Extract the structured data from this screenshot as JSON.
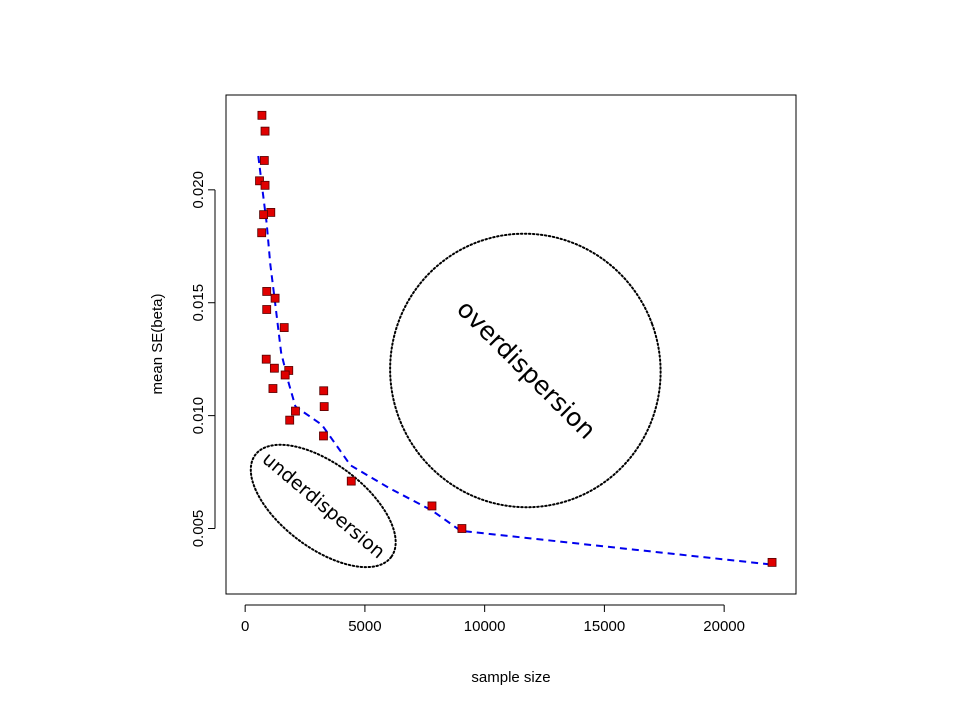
{
  "chart_data": {
    "type": "scatter",
    "xlabel": "sample size",
    "ylabel": "mean SE(beta)",
    "xlim": [
      -800,
      23000
    ],
    "ylim": [
      0.0021,
      0.0242
    ],
    "x_ticks": [
      0,
      5000,
      10000,
      15000,
      20000
    ],
    "y_ticks": [
      0.005,
      0.01,
      0.015,
      0.02
    ],
    "x_tick_labels": [
      "0",
      "5000",
      "10000",
      "15000",
      "20000"
    ],
    "y_tick_labels": [
      "0.005",
      "0.010",
      "0.015",
      "0.020"
    ],
    "grid": false,
    "colors": {
      "points": "#e00000",
      "point_border": "#550000",
      "trend": "#0000ee"
    },
    "points": [
      {
        "x": 700,
        "y": 0.0233
      },
      {
        "x": 830,
        "y": 0.0226
      },
      {
        "x": 800,
        "y": 0.0213
      },
      {
        "x": 600,
        "y": 0.0204
      },
      {
        "x": 830,
        "y": 0.0202
      },
      {
        "x": 1070,
        "y": 0.019
      },
      {
        "x": 770,
        "y": 0.0189
      },
      {
        "x": 690,
        "y": 0.0181
      },
      {
        "x": 900,
        "y": 0.0155
      },
      {
        "x": 1250,
        "y": 0.0152
      },
      {
        "x": 900,
        "y": 0.0147
      },
      {
        "x": 1630,
        "y": 0.0139
      },
      {
        "x": 880,
        "y": 0.0125
      },
      {
        "x": 1220,
        "y": 0.0121
      },
      {
        "x": 1820,
        "y": 0.012
      },
      {
        "x": 1670,
        "y": 0.0118
      },
      {
        "x": 1160,
        "y": 0.0112
      },
      {
        "x": 3280,
        "y": 0.0111
      },
      {
        "x": 3300,
        "y": 0.0104
      },
      {
        "x": 2100,
        "y": 0.0102
      },
      {
        "x": 1860,
        "y": 0.0098
      },
      {
        "x": 3270,
        "y": 0.0091
      },
      {
        "x": 4430,
        "y": 0.0071
      },
      {
        "x": 7800,
        "y": 0.006
      },
      {
        "x": 9050,
        "y": 0.005
      },
      {
        "x": 22000,
        "y": 0.0035
      }
    ],
    "trend_line": [
      {
        "x": 550,
        "y": 0.0215
      },
      {
        "x": 700,
        "y": 0.0202
      },
      {
        "x": 900,
        "y": 0.0185
      },
      {
        "x": 1050,
        "y": 0.0167
      },
      {
        "x": 1250,
        "y": 0.015
      },
      {
        "x": 1500,
        "y": 0.0128
      },
      {
        "x": 1800,
        "y": 0.0115
      },
      {
        "x": 2100,
        "y": 0.0104
      },
      {
        "x": 3200,
        "y": 0.0096
      },
      {
        "x": 4400,
        "y": 0.0078
      },
      {
        "x": 6000,
        "y": 0.0068
      },
      {
        "x": 7800,
        "y": 0.0058
      },
      {
        "x": 9000,
        "y": 0.0049
      },
      {
        "x": 22000,
        "y": 0.0034
      }
    ],
    "annotations": [
      {
        "text": "overdispersion",
        "cx": 11700,
        "cy": 0.012,
        "rx_data": 5500,
        "ry_data": 0.0058,
        "rotation_deg": 45
      },
      {
        "text": "underdispersion",
        "cx": 3260,
        "cy": 0.006,
        "rx_data": 3900,
        "ry_data": 0.0014,
        "rotation_deg": 40
      }
    ]
  }
}
